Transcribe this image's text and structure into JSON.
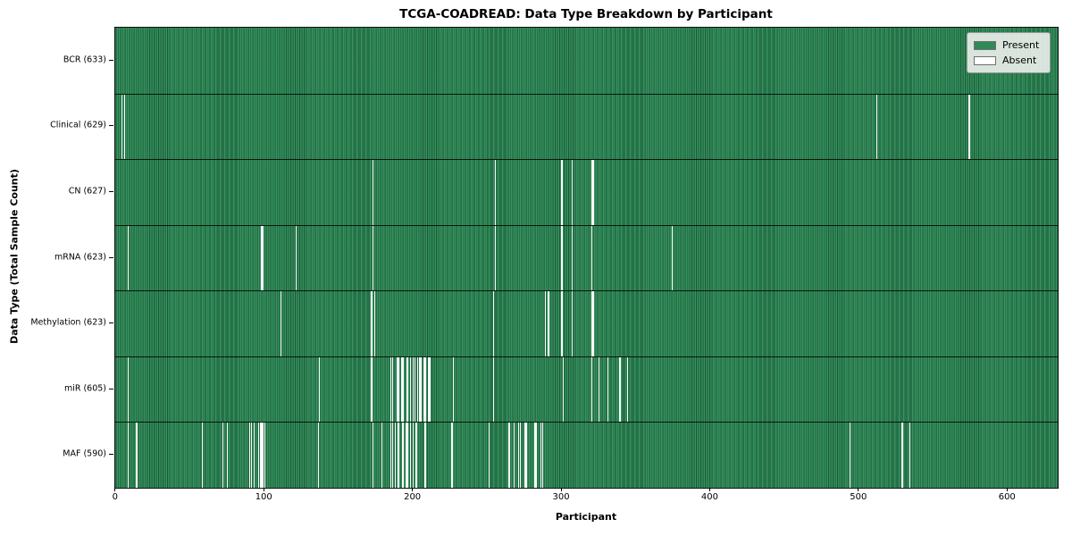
{
  "chart_data": {
    "type": "heatmap",
    "title": "TCGA-COADREAD: Data Type Breakdown by Participant",
    "xlabel": "Participant",
    "ylabel": "Data Type (Total Sample Count)",
    "n_participants": 633,
    "xlim": [
      -0.5,
      633.5
    ],
    "x_ticks": [
      0,
      100,
      200,
      300,
      400,
      500,
      600
    ],
    "grid": false,
    "colors": {
      "present": "#2e8b57",
      "absent": "#ffffff",
      "border": "#111111"
    },
    "legend": {
      "position": "upper right",
      "entries": [
        {
          "label": "Present",
          "color": "#2e8b57"
        },
        {
          "label": "Absent",
          "color": "#ffffff"
        }
      ]
    },
    "rows": [
      {
        "name": "bcr",
        "label": "BCR (633)",
        "present_count": 633,
        "absent_participants": []
      },
      {
        "name": "clinical",
        "label": "Clinical (629)",
        "present_count": 629,
        "absent_participants": [
          4,
          6,
          512,
          574
        ]
      },
      {
        "name": "cn",
        "label": "CN (627)",
        "present_count": 627,
        "absent_participants": [
          173,
          255,
          300,
          307,
          320,
          321
        ]
      },
      {
        "name": "mrna",
        "label": "mRNA (623)",
        "present_count": 623,
        "absent_participants": [
          8,
          98,
          99,
          121,
          173,
          255,
          300,
          307,
          320,
          374
        ]
      },
      {
        "name": "methylation",
        "label": "Methylation (623)",
        "present_count": 623,
        "absent_participants": [
          111,
          172,
          174,
          254,
          289,
          291,
          300,
          307,
          320,
          321
        ]
      },
      {
        "name": "mir",
        "label": "miR (605)",
        "present_count": 605,
        "absent_participants": [
          8,
          137,
          172,
          185,
          186,
          189,
          190,
          192,
          193,
          196,
          198,
          200,
          201,
          203,
          204,
          205,
          207,
          208,
          210,
          211,
          227,
          254,
          301,
          320,
          325,
          331,
          339,
          344
        ]
      },
      {
        "name": "maf",
        "label": "MAF (590)",
        "present_count": 590,
        "absent_participants": [
          8,
          14,
          58,
          72,
          75,
          90,
          91,
          93,
          96,
          97,
          98,
          99,
          100,
          136,
          173,
          179,
          185,
          186,
          188,
          190,
          193,
          195,
          196,
          198,
          200,
          202,
          208,
          226,
          251,
          264,
          265,
          268,
          271,
          272,
          275,
          276,
          282,
          283,
          286,
          287,
          494,
          529,
          534
        ]
      }
    ]
  }
}
